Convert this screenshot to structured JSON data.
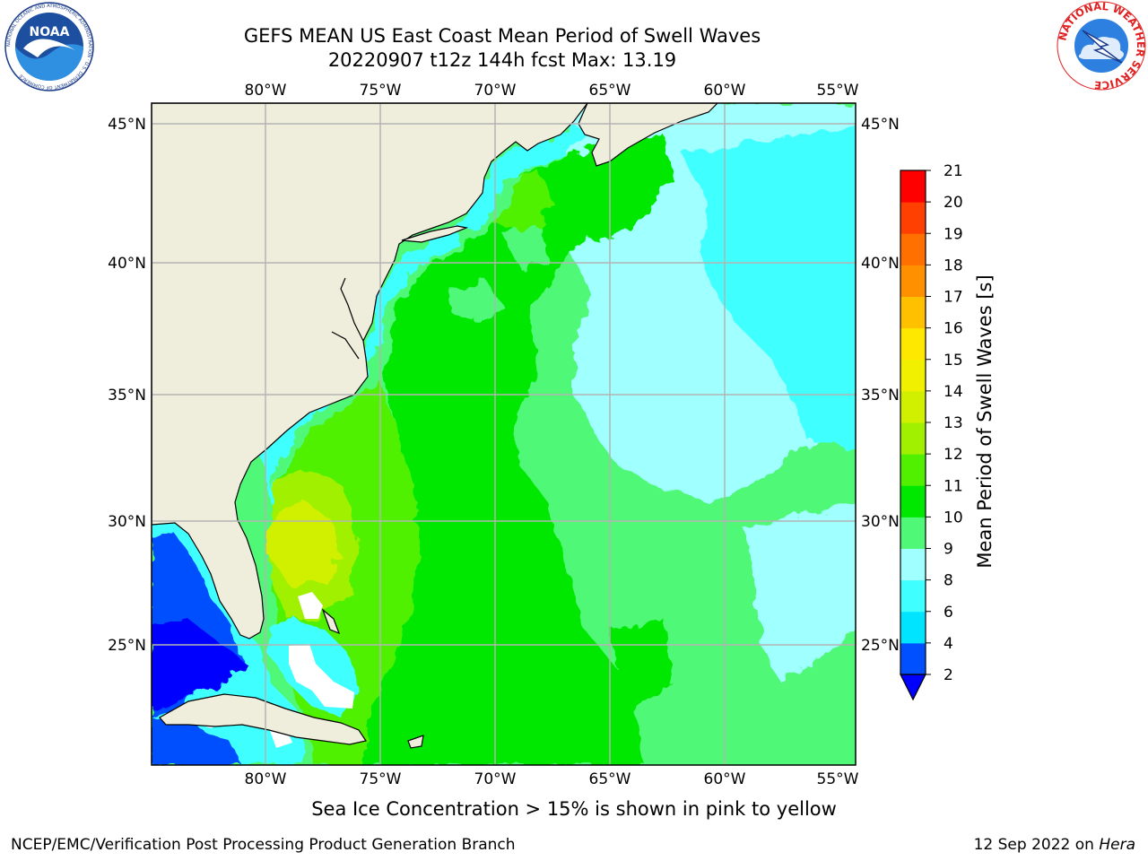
{
  "title": {
    "line1": "GEFS MEAN US East Coast Mean Period of Swell Waves",
    "line2": "20220907 t12z 144h fcst   Max: 13.19"
  },
  "map": {
    "lon_ticks": [
      "80°W",
      "75°W",
      "70°W",
      "65°W",
      "60°W",
      "55°W"
    ],
    "lat_ticks": [
      "45°N",
      "40°N",
      "35°N",
      "30°N",
      "25°N"
    ],
    "land_color": "#efeedc",
    "grid_color": "#b4b4b4"
  },
  "colorbar": {
    "label": "Mean Period of Swell Waves [s]",
    "ticks": [
      "2",
      "4",
      "6",
      "8",
      "9",
      "10",
      "11",
      "12",
      "13",
      "14",
      "15",
      "16",
      "17",
      "18",
      "19",
      "20",
      "21"
    ],
    "colors": [
      "#0050ff",
      "#00e4ff",
      "#40ffff",
      "#a0ffff",
      "#50f878",
      "#00e800",
      "#50f000",
      "#a0f000",
      "#d0f000",
      "#f0f000",
      "#ffe800",
      "#ffc000",
      "#ff9000",
      "#ff7000",
      "#ff4000",
      "#ff0000"
    ],
    "under_color": "#0000ff"
  },
  "field_colors": {
    "deep_blue": "#0000ff",
    "blue": "#0050ff",
    "cyan": "#00e4ff",
    "light_cyan": "#40ffff",
    "pale_cyan": "#a0ffff",
    "light_green": "#50f878",
    "green": "#00e800",
    "lime": "#50f000",
    "yellow_green": "#a0f000",
    "yellow": "#d0f000",
    "white": "#ffffff"
  },
  "logos": {
    "noaa_text": "NOAA",
    "noaa_ring": "NATIONAL OCEANIC AND ATMOSPHERIC ADMINISTRATION · U.S. DEPARTMENT OF COMMERCE",
    "nws_ring": "NATIONAL WEATHER SERVICE"
  },
  "footer": {
    "note": "Sea Ice Concentration > 15% is shown in pink to yellow",
    "left": "NCEP/EMC/Verification Post Processing Product Generation Branch",
    "right_date": "12 Sep 2022 on ",
    "right_host": "Hera"
  }
}
